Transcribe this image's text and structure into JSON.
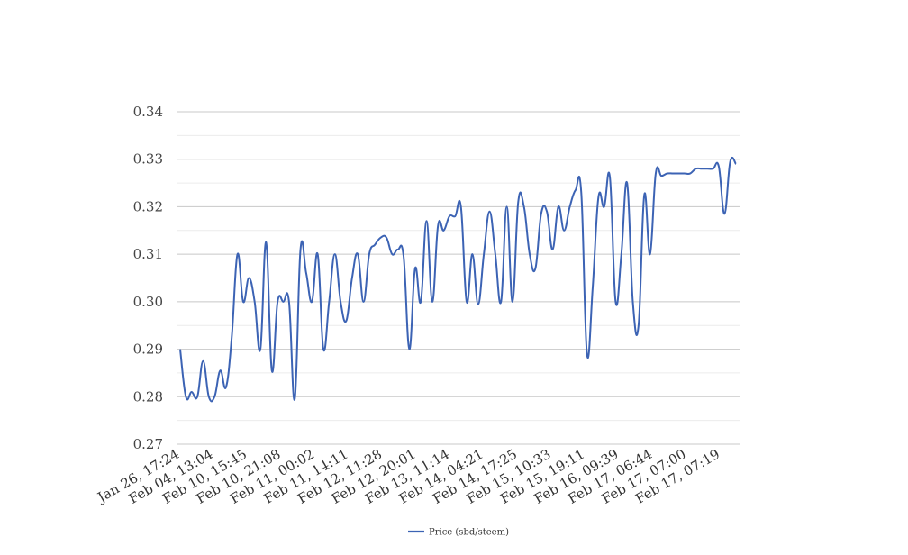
{
  "chart_data": {
    "type": "line",
    "title": "",
    "xlabel": "",
    "ylabel": "",
    "ylim": [
      0.27,
      0.34
    ],
    "yticks": [
      "0.27",
      "0.28",
      "0.29",
      "0.30",
      "0.31",
      "0.32",
      "0.33",
      "0.34"
    ],
    "grid": true,
    "legend_position": "bottom",
    "x_tick_labels": [
      "Jan 26, 17:24",
      "Feb 04, 13:04",
      "Feb 10, 15:45",
      "Feb 10, 21:08",
      "Feb 11, 00:02",
      "Feb 11, 14:11",
      "Feb 12, 11:28",
      "Feb 12, 20:01",
      "Feb 13, 11:14",
      "Feb 14, 04:21",
      "Feb 14, 17:25",
      "Feb 15, 10:33",
      "Feb 15, 19:11",
      "Feb 16, 09:39",
      "Feb 17, 06:44",
      "Feb 17, 07:00",
      "Feb 17, 07:19"
    ],
    "series": [
      {
        "name": "Price (sbd/steem)",
        "color": "#3c63b4",
        "values": [
          0.29,
          0.28,
          0.281,
          0.28,
          0.2875,
          0.28,
          0.28,
          0.2855,
          0.282,
          0.2925,
          0.31,
          0.3,
          0.305,
          0.3,
          0.29,
          0.3125,
          0.2855,
          0.3,
          0.3,
          0.3,
          0.2795,
          0.311,
          0.306,
          0.3,
          0.31,
          0.29,
          0.3,
          0.31,
          0.3,
          0.296,
          0.305,
          0.31,
          0.3,
          0.31,
          0.312,
          0.3135,
          0.3135,
          0.31,
          0.311,
          0.3095,
          0.29,
          0.307,
          0.3,
          0.317,
          0.3,
          0.316,
          0.315,
          0.318,
          0.318,
          0.32,
          0.3,
          0.31,
          0.2995,
          0.31,
          0.319,
          0.31,
          0.3,
          0.32,
          0.3,
          0.321,
          0.32,
          0.31,
          0.307,
          0.3185,
          0.319,
          0.311,
          0.32,
          0.315,
          0.32,
          0.3235,
          0.323,
          0.289,
          0.303,
          0.322,
          0.32,
          0.3262,
          0.3,
          0.31,
          0.325,
          0.3,
          0.295,
          0.3225,
          0.31,
          0.327,
          0.3265,
          0.327,
          0.327,
          0.327,
          0.327,
          0.327,
          0.328,
          0.328,
          0.328,
          0.328,
          0.3285,
          0.3185,
          0.3295,
          0.329
        ]
      }
    ]
  }
}
